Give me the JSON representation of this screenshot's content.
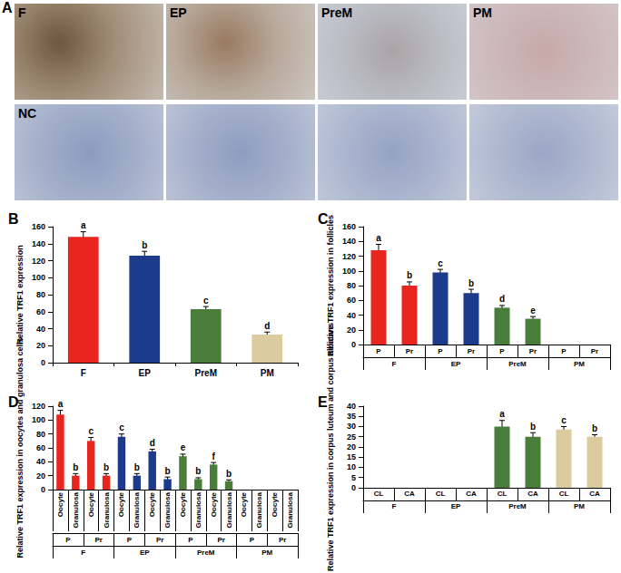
{
  "panel_a": {
    "title": "A",
    "tiles": [
      [
        "F",
        "EP",
        "PreM",
        "PM"
      ],
      [
        "NC",
        null,
        null,
        null
      ]
    ]
  },
  "chart_data": [
    {
      "type": "bar",
      "title": "B",
      "y_label": "Relative TRF1 expression",
      "categories": [
        "F",
        "EP",
        "PreM",
        "PM"
      ],
      "category_groups": [],
      "values": [
        148,
        126,
        63,
        33
      ],
      "errors": [
        6,
        5,
        3,
        3
      ],
      "letters": [
        "a",
        "b",
        "c",
        "d"
      ],
      "colors": [
        "#e8261f",
        "#1d3b8c",
        "#4a7d3a",
        "#dccb9f"
      ],
      "ylim": [
        0,
        160
      ],
      "yticks": [
        0,
        20,
        40,
        60,
        80,
        100,
        120,
        140,
        160
      ],
      "grid": false
    },
    {
      "type": "bar",
      "title": "C",
      "y_label": "Relative TRF1 expression in follicles",
      "categories": [
        "P",
        "Pr",
        "P",
        "Pr",
        "P",
        "Pr",
        "P",
        "Pr"
      ],
      "category_groups": [
        [
          "F",
          "EP",
          "PreM",
          "PM"
        ]
      ],
      "values": [
        128,
        80,
        98,
        70,
        50,
        35,
        0,
        0
      ],
      "errors": [
        8,
        5,
        4,
        5,
        3,
        3,
        null,
        null
      ],
      "letters": [
        "a",
        "b",
        "c",
        "b",
        "d",
        "e",
        null,
        null
      ],
      "colors": [
        "#e8261f",
        "#e8261f",
        "#1d3b8c",
        "#1d3b8c",
        "#4a7d3a",
        "#4a7d3a",
        "#dccb9f",
        "#dccb9f"
      ],
      "ylim": [
        0,
        160
      ],
      "yticks": [
        0,
        20,
        40,
        60,
        80,
        100,
        120,
        140,
        160
      ],
      "grid": false
    },
    {
      "type": "bar",
      "title": "D",
      "y_label": "Relative TRF1 expression in oocytes and granulosa cells",
      "categories": [
        "Oocyte",
        "Granulosa",
        "Oocyte",
        "Granulosa",
        "Oocyte",
        "Granulosa",
        "Oocyte",
        "Granulosa",
        "Oocyte",
        "Granulosa",
        "Oocyte",
        "Granulosa",
        "Oocyte",
        "Granulosa",
        "Oocyte",
        "Granulosa"
      ],
      "category_groups": [
        [
          "P",
          "Pr",
          "P",
          "Pr",
          "P",
          "Pr",
          "P",
          "Pr"
        ],
        [
          "F",
          "EP",
          "PreM",
          "PM"
        ]
      ],
      "values": [
        108,
        20,
        70,
        20,
        76,
        20,
        55,
        15,
        48,
        15,
        36,
        12,
        0,
        0,
        0,
        0
      ],
      "errors": [
        6,
        3,
        5,
        3,
        4,
        3,
        3,
        3,
        3,
        2,
        3,
        2,
        null,
        null,
        null,
        null
      ],
      "letters": [
        "a",
        "b",
        "c",
        "b",
        "c",
        "b",
        "d",
        "b",
        "e",
        "b",
        "f",
        "b",
        null,
        null,
        null,
        null
      ],
      "colors": [
        "#e8261f",
        "#e8261f",
        "#e8261f",
        "#e8261f",
        "#1d3b8c",
        "#1d3b8c",
        "#1d3b8c",
        "#1d3b8c",
        "#4a7d3a",
        "#4a7d3a",
        "#4a7d3a",
        "#4a7d3a",
        "#dccb9f",
        "#dccb9f",
        "#dccb9f",
        "#dccb9f"
      ],
      "ylim": [
        0,
        120
      ],
      "yticks": [
        0,
        20,
        40,
        60,
        80,
        100,
        120
      ],
      "grid": false
    },
    {
      "type": "bar",
      "title": "E",
      "y_label": "Relative TRF1 expression in corpus luteum and corpus albicans",
      "categories": [
        "CL",
        "CA",
        "CL",
        "CA",
        "CL",
        "CA",
        "CL",
        "CA"
      ],
      "category_groups": [
        [
          "F",
          "EP",
          "PreM",
          "PM"
        ]
      ],
      "values": [
        0,
        0,
        0,
        0,
        30,
        25,
        28.5,
        25
      ],
      "errors": [
        null,
        null,
        null,
        null,
        3,
        2,
        1.5,
        1
      ],
      "letters": [
        null,
        null,
        null,
        null,
        "a",
        "b",
        "c",
        "b"
      ],
      "colors": [
        "#e8261f",
        "#e8261f",
        "#1d3b8c",
        "#1d3b8c",
        "#4a7d3a",
        "#4a7d3a",
        "#dccb9f",
        "#dccb9f"
      ],
      "ylim": [
        0,
        40
      ],
      "yticks": [
        0,
        5,
        10,
        15,
        20,
        25,
        30,
        35,
        40
      ],
      "grid": false
    }
  ]
}
